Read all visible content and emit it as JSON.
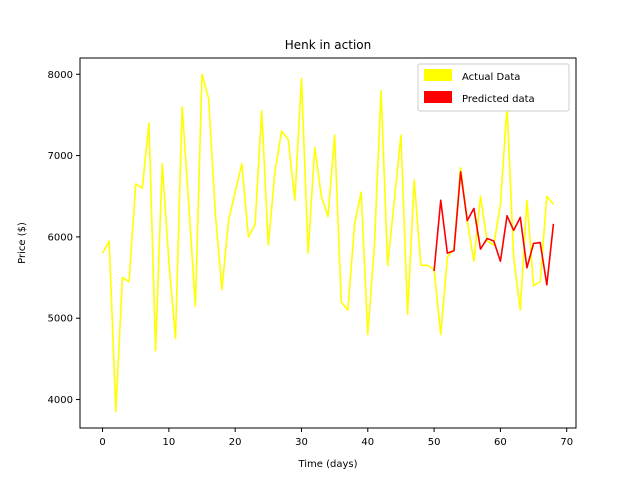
{
  "chart_data": {
    "type": "line",
    "title": "Henk in action",
    "xlabel": "Time (days)",
    "ylabel": "Price ($)",
    "xlim": [
      -3.4,
      71.4
    ],
    "ylim": [
      3650,
      8200
    ],
    "x_ticks": [
      0,
      10,
      20,
      30,
      40,
      50,
      60,
      70
    ],
    "y_ticks": [
      4000,
      5000,
      6000,
      7000,
      8000
    ],
    "grid": false,
    "legend_position": "top-right",
    "series": [
      {
        "name": "Actual Data",
        "color": "#ffff00",
        "x": [
          0,
          1,
          2,
          3,
          4,
          5,
          6,
          7,
          8,
          9,
          10,
          11,
          12,
          13,
          14,
          15,
          16,
          17,
          18,
          19,
          20,
          21,
          22,
          23,
          24,
          25,
          26,
          27,
          28,
          29,
          30,
          31,
          32,
          33,
          34,
          35,
          36,
          37,
          38,
          39,
          40,
          41,
          42,
          43,
          44,
          45,
          46,
          47,
          48,
          49,
          50,
          51,
          52,
          53,
          54,
          55,
          56,
          57,
          58,
          59,
          60,
          61,
          62,
          63,
          64,
          65,
          66,
          67,
          68
        ],
        "values": [
          5800,
          5950,
          3850,
          5500,
          5450,
          6650,
          6600,
          7400,
          4600,
          6900,
          5700,
          4750,
          7600,
          6400,
          5150,
          8000,
          7700,
          6300,
          5350,
          6200,
          6550,
          6900,
          6000,
          6150,
          7550,
          5900,
          6800,
          7300,
          7200,
          6450,
          7950,
          5800,
          7100,
          6500,
          6250,
          7250,
          5200,
          5100,
          6150,
          6550,
          4800,
          5900,
          7800,
          5650,
          6450,
          7250,
          5050,
          6700,
          5650,
          5650,
          5600,
          4800,
          5750,
          5850,
          6850,
          6200,
          5700,
          6500,
          5950,
          5900,
          6400,
          7600,
          5750,
          5100,
          6450,
          5400,
          5450,
          6500,
          6400
        ]
      },
      {
        "name": "Predicted data",
        "color": "#ff0000",
        "x": [
          50,
          51,
          52,
          53,
          54,
          55,
          56,
          57,
          58,
          59,
          60,
          61,
          62,
          63,
          64,
          65,
          66,
          67,
          68
        ],
        "values": [
          5580,
          6450,
          5800,
          5830,
          6800,
          6200,
          6350,
          5850,
          5980,
          5950,
          5700,
          6260,
          6080,
          6240,
          5620,
          5920,
          5930,
          5410,
          6160
        ]
      }
    ]
  }
}
